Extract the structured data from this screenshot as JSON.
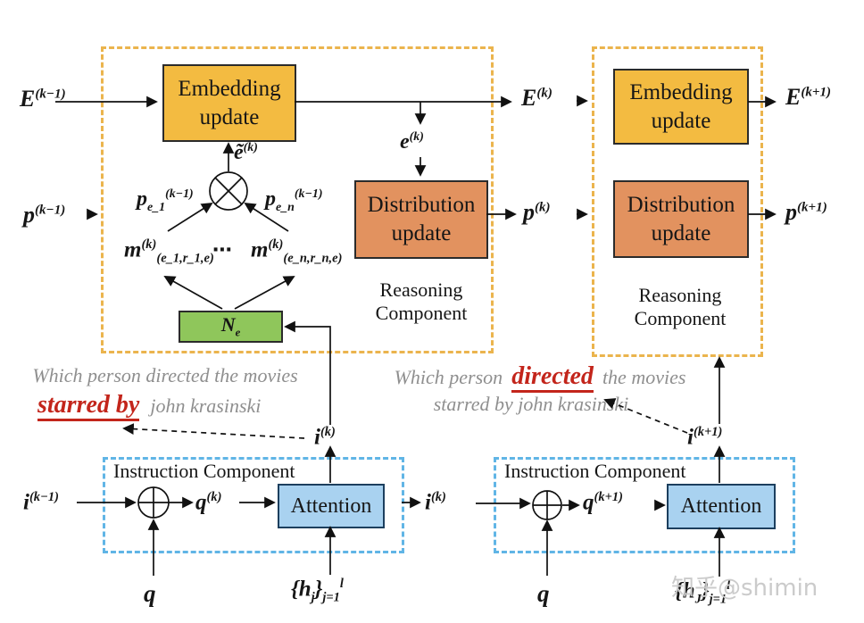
{
  "colors": {
    "reasoning_dash": "#EBB44D",
    "instruction_dash": "#60B5E6",
    "embedding_box": "#F3BB41",
    "distribution_box": "#E2925F",
    "aggregate_box": "#8FC65B",
    "attention_box": "#A9D2F0",
    "highlight_red": "#C3251B",
    "question_gray": "#8f8f8f",
    "watermark_gray": "#cbcbcb"
  },
  "reasoning_left": {
    "title": "Reasoning Component",
    "embedding_label": "Embedding update",
    "distribution_label": "Distribution update",
    "aggregator_label": "N_{e}",
    "E_prev": "E^{(k−1)}",
    "p_prev": "p^{(k−1)}",
    "e_tilde": "ẽ^{(k)}",
    "e_k": "e^{(k)}",
    "p_e1": "p_{e_1}^{(k−1)}",
    "p_en": "p_{e_n}^{(k−1)}",
    "m_1": "m^{(k)}_{(e_1,r_1,e)}",
    "dots": "⋯",
    "m_n": "m^{(k)}_{(e_n,r_n,e)}"
  },
  "between": {
    "E_k": "E^{(k)}",
    "p_k": "p^{(k)}"
  },
  "reasoning_right": {
    "title": "Reasoning Component",
    "embedding_label": "Embedding update",
    "distribution_label": "Distribution update",
    "E_next": "E^{(k+1)}",
    "p_next": "p^{(k+1)}"
  },
  "questions": {
    "left": {
      "line1": "Which person directed the movies",
      "highlight": "starred by",
      "line2_rest": "john krasinski"
    },
    "right": {
      "pre": "Which person",
      "highlight": "directed",
      "post": "the movies",
      "line2": "starred by john krasinski"
    }
  },
  "instruction_left": {
    "title": "Instruction Component",
    "i_prev": "i^{(k−1)}",
    "q_k": "q^{(k)}",
    "attention_label": "Attention",
    "i_out": "i^{(k)}",
    "q_in": "q",
    "h_in": "{h_{j}}_{j=1}^{l}"
  },
  "instruction_right": {
    "title": "Instruction Component",
    "i_in": "i^{(k)}",
    "q_next": "q^{(k+1)}",
    "attention_label": "Attention",
    "i_out": "i^{(k+1)}",
    "q_in": "q",
    "h_in": "{h_{J}}_{j=1}^{l}"
  },
  "watermark": "知乎@shimin"
}
